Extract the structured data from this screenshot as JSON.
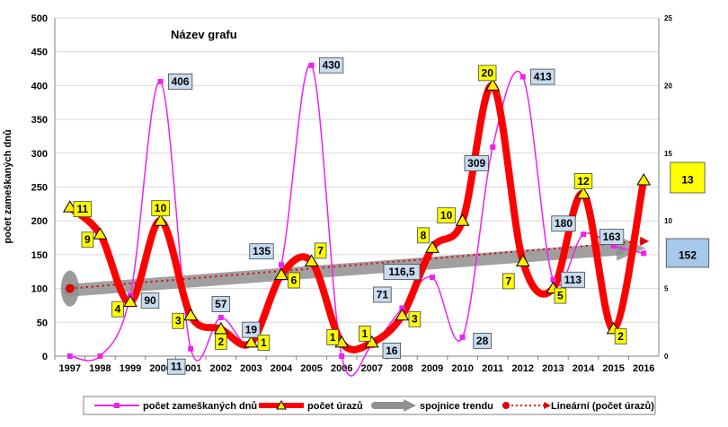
{
  "chart_data": {
    "type": "line",
    "title": "Název grafu",
    "ylabel": "počet zameškaných dnů",
    "ylim": [
      0,
      500
    ],
    "y_ticks": [
      "0",
      "50",
      "100",
      "150",
      "200",
      "250",
      "300",
      "350",
      "400",
      "450",
      "500"
    ],
    "y2lim": [
      0,
      25
    ],
    "y2_ticks": [
      "0",
      "5",
      "10",
      "15",
      "20",
      "25"
    ],
    "grid": true,
    "legend_position": "bottom",
    "categories": [
      "1997",
      "1998",
      "1999",
      "2000",
      "2001",
      "2002",
      "2003",
      "2004",
      "2005",
      "2006",
      "2007",
      "2008",
      "2009",
      "2010",
      "2011",
      "2012",
      "2013",
      "2014",
      "2015",
      "2016"
    ],
    "series": [
      {
        "name": "počet zameškaných dnů",
        "axis": "left",
        "color": "#ee22ee",
        "values": [
          0,
          0,
          90,
          406,
          11,
          57,
          19,
          135,
          430,
          0,
          16,
          71,
          116.5,
          28,
          309,
          413,
          113,
          180,
          163,
          152
        ],
        "labels": [
          "",
          "",
          "90",
          "406",
          "11",
          "57",
          "19",
          "135",
          "430",
          "",
          "16",
          "71",
          "116,5",
          "28",
          "309",
          "413",
          "113",
          "180",
          "163",
          "152"
        ]
      },
      {
        "name": "počet úrazů",
        "axis": "right",
        "color": "#ff0000",
        "values": [
          11,
          9,
          4,
          10,
          3,
          2,
          1,
          6,
          7,
          1,
          1,
          3,
          8,
          10,
          20,
          7,
          5,
          12,
          2,
          13
        ],
        "labels": [
          "11",
          "9",
          "4",
          "10",
          "3",
          "2",
          "1",
          "6",
          "7",
          "1",
          "1",
          "3",
          "8",
          "10",
          "20",
          "7",
          "5",
          "12",
          "2",
          "13"
        ]
      }
    ],
    "trend_series": [
      {
        "name": "spojnice trendu",
        "color": "#909090",
        "from_value": 100,
        "to_value": 165
      },
      {
        "name": "Lineární (počet úrazů)",
        "color": "#dd0000",
        "axis": "right",
        "from_value": 5,
        "to_value": 8.5
      }
    ]
  }
}
